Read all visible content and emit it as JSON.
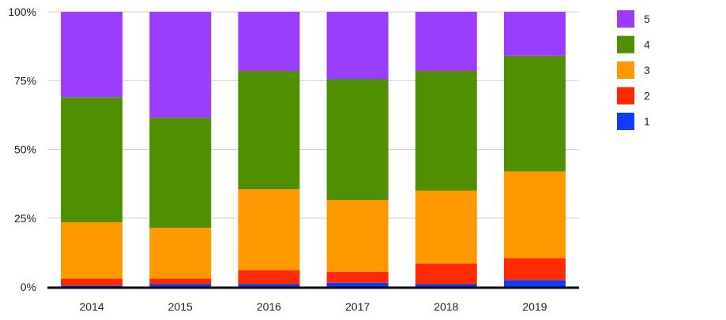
{
  "chart_data": {
    "type": "bar",
    "stacked": true,
    "normalized": true,
    "title": "",
    "xlabel": "",
    "ylabel": "",
    "ylim": [
      0,
      100
    ],
    "yticks": [
      "0%",
      "25%",
      "50%",
      "75%",
      "100%"
    ],
    "categories": [
      "2014",
      "2015",
      "2016",
      "2017",
      "2018",
      "2019"
    ],
    "series": [
      {
        "name": "1",
        "color": "#0d3bff",
        "values": [
          0.5,
          1.0,
          1.0,
          1.5,
          1.0,
          2.5
        ]
      },
      {
        "name": "2",
        "color": "#ff2a00",
        "values": [
          2.5,
          2.0,
          5.0,
          4.0,
          7.5,
          8.0
        ]
      },
      {
        "name": "3",
        "color": "#ff9900",
        "values": [
          20.5,
          18.5,
          29.5,
          26.0,
          26.5,
          31.5
        ]
      },
      {
        "name": "4",
        "color": "#4f8f00",
        "values": [
          45.5,
          40.0,
          43.0,
          44.0,
          43.5,
          42.0
        ]
      },
      {
        "name": "5",
        "color": "#9a3dff",
        "values": [
          31.0,
          38.5,
          21.5,
          24.5,
          21.5,
          16.0
        ]
      }
    ],
    "legend": {
      "position": "right",
      "order": [
        "5",
        "4",
        "3",
        "2",
        "1"
      ]
    },
    "grid": true
  }
}
